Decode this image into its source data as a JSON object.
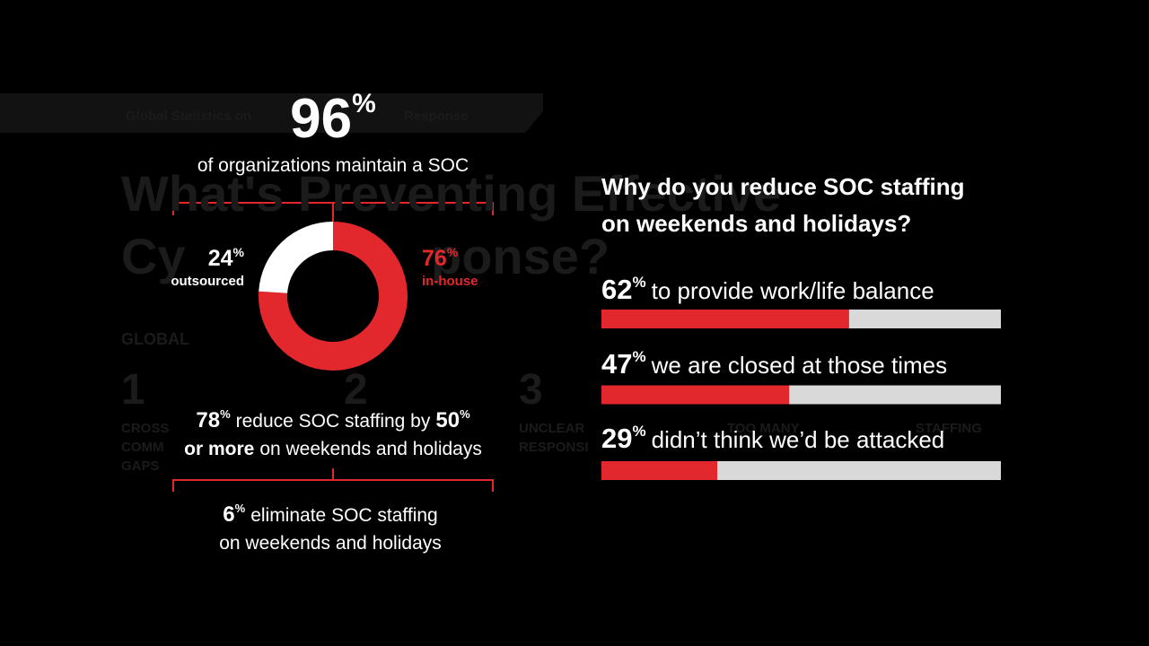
{
  "percent_sign": "%",
  "background": {
    "banner": [
      "Global Statistics on",
      "Response"
    ],
    "title": [
      "What's Preventing Effective",
      "Cy",
      "ponse?"
    ],
    "section": "GLOBAL",
    "numbers": [
      "1",
      "2",
      "3"
    ],
    "labels": [
      "CROSS",
      "COMM",
      "GAPS",
      "UNCLEAR",
      "RESPONSI",
      "TOO MANY",
      "STAFFING"
    ]
  },
  "headline": {
    "value": 96,
    "text": "of organizations maintain a SOC"
  },
  "donut": {
    "type": "pie",
    "segments": [
      {
        "name": "in-house",
        "value": 76,
        "color": "#e2272d"
      },
      {
        "name": "outsourced",
        "value": 24,
        "color": "#ffffff"
      }
    ]
  },
  "staffing_reduction": {
    "value": 78,
    "text": "reduce SOC staffing by",
    "threshold": 50,
    "bold_text": "or more",
    "text_after": "on weekends and holidays"
  },
  "staffing_elimination": {
    "value": 6,
    "lines": [
      "eliminate SOC staffing",
      "on weekends and holidays"
    ]
  },
  "reasons": {
    "type": "bar",
    "title": [
      "Why do you reduce SOC staffing",
      "on weekends and holidays?"
    ],
    "xlim": [
      0,
      100
    ],
    "color": "#e2272d",
    "track_color": "#d9d9d9",
    "items": [
      {
        "value": 62,
        "label": "to provide work/life balance"
      },
      {
        "value": 47,
        "label": "we are closed at those times"
      },
      {
        "value": 29,
        "label": "didn’t think we’d be attacked"
      }
    ]
  }
}
